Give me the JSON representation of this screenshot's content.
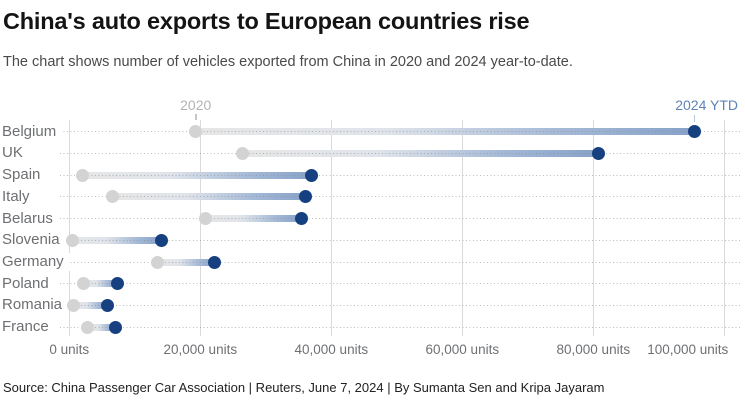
{
  "header": {
    "title": "China's auto exports to European countries rise",
    "subtitle": "The chart shows number of vehicles exported from China in 2020 and 2024 year-to-date."
  },
  "chart_data": {
    "type": "dumbbell",
    "title": "China's auto exports to European countries rise",
    "xlabel": "",
    "ylabel": "",
    "unit": "units",
    "xlim": [
      0,
      100000
    ],
    "grid": "vertical solid lines every 20,000 units; dotted horizontal guide per country row",
    "legend_position": "top, 2020 label above first 2020 dot (gray), 2024 YTD label above first 2024 dot (blue)",
    "categories": [
      "Belgium",
      "UK",
      "Spain",
      "Italy",
      "Belarus",
      "Slovenia",
      "Germany",
      "Poland",
      "Romania",
      "France"
    ],
    "series": [
      {
        "name": "2020",
        "values": [
          19300,
          26500,
          2000,
          6600,
          20800,
          500,
          13400,
          2100,
          600,
          2800
        ]
      },
      {
        "name": "2024 YTD",
        "values": [
          95400,
          80800,
          37000,
          36100,
          35400,
          14000,
          22200,
          7400,
          5900,
          7000
        ]
      }
    ],
    "x_ticks": [
      {
        "value": 0,
        "label": "0 units"
      },
      {
        "value": 20000,
        "label": "20,000 units"
      },
      {
        "value": 40000,
        "label": "40,000 units"
      },
      {
        "value": 60000,
        "label": "60,000 units"
      },
      {
        "value": 80000,
        "label": "80,000 units"
      },
      {
        "value": 100000,
        "label": "100,000 units",
        "align": "right"
      }
    ],
    "colors": {
      "dot_2020": "#d3d3d3",
      "dot_2024": "#16407f",
      "band_gradient_start": "#e6e6e6",
      "band_gradient_mid": "#a6bad7",
      "band_gradient_end": "#86a1c8",
      "legend_2020_text": "#b1b3b5",
      "legend_2024_text": "#5d83b7",
      "gridline": "#dadada",
      "legend_tick_2020": "#c6c6c8",
      "legend_tick_2024": "#b9c7da"
    }
  },
  "footer": {
    "source": "Source: China Passenger Car Association | Reuters, June 7, 2024 | By Sumanta Sen and Kripa Jayaram"
  }
}
